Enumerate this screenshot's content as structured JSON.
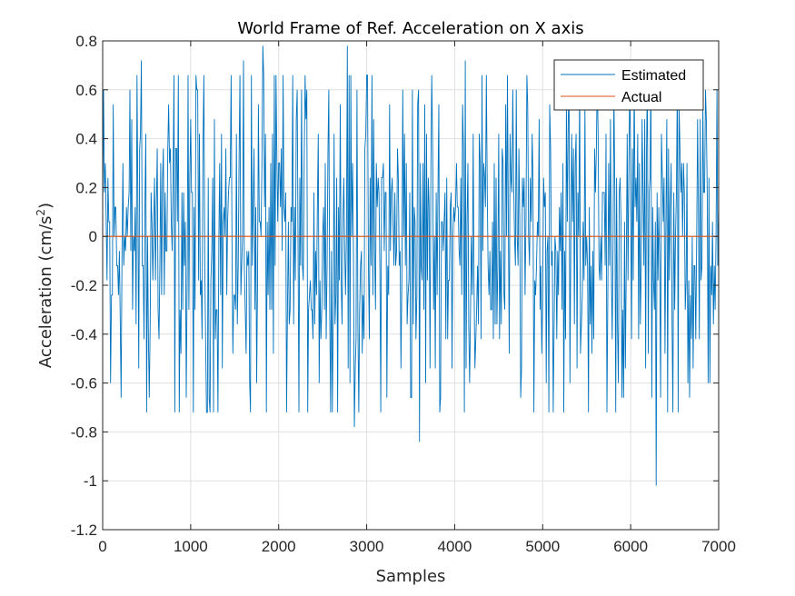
{
  "chart_data": {
    "type": "line",
    "title": "World Frame of Ref. Acceleration on X axis",
    "xlabel": "Samples",
    "ylabel": "Acceleration (cm/s",
    "ylabel_superscript": "2",
    "ylabel_suffix": ")",
    "xlim": [
      0,
      7000
    ],
    "ylim": [
      -1.2,
      0.8
    ],
    "xticks": [
      0,
      1000,
      2000,
      3000,
      4000,
      5000,
      6000,
      7000
    ],
    "xtick_labels": [
      "0",
      "1000",
      "2000",
      "3000",
      "4000",
      "5000",
      "6000",
      "7000"
    ],
    "yticks": [
      -1.2,
      -1,
      -0.8,
      -0.6,
      -0.4,
      -0.2,
      0,
      0.2,
      0.4,
      0.6,
      0.8
    ],
    "ytick_labels": [
      "-1.2",
      "-1",
      "-0.8",
      "-0.6",
      "-0.4",
      "-0.2",
      "0",
      "0.2",
      "0.4",
      "0.6",
      "0.8"
    ],
    "grid": true,
    "legend_position": "top-right",
    "series": [
      {
        "name": "Estimated",
        "color": "#0072BD",
        "x": [
          0,
          90,
          440,
          500,
          950,
          1180,
          1220,
          1600,
          1820,
          2090,
          2780,
          2860,
          3600,
          4120,
          6290,
          6900,
          7000
        ],
        "values": [
          0.12,
          -0.6,
          0.72,
          -0.72,
          -0.66,
          -0.72,
          -0.72,
          0.72,
          0.78,
          -0.72,
          0.78,
          -0.78,
          -0.84,
          0.72,
          -1.02,
          -0.6,
          0.12
        ],
        "noise_amplitude": 0.55
      },
      {
        "name": "Actual",
        "color": "#D95319",
        "x": [
          0,
          7000
        ],
        "values": [
          0,
          0
        ]
      }
    ]
  }
}
